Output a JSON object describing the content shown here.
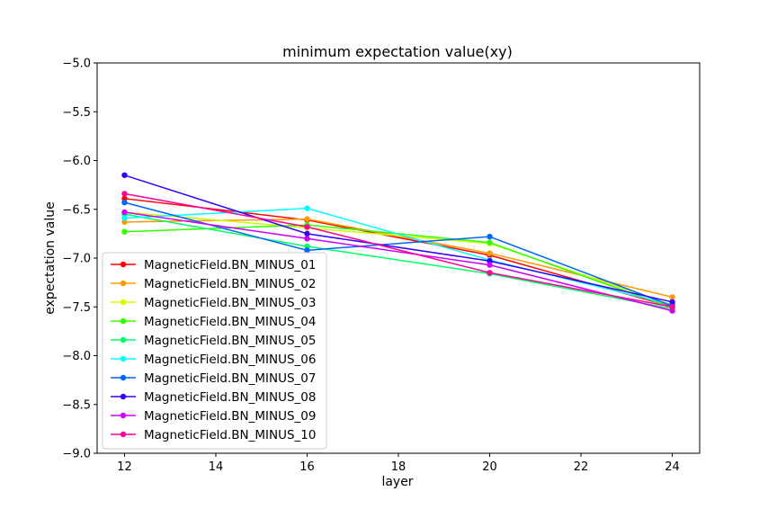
{
  "chart_data": {
    "type": "line",
    "title": "minimum expectation value(xy)",
    "xlabel": "layer",
    "ylabel": "expectation value",
    "x": [
      12,
      16,
      20,
      24
    ],
    "xlim": [
      11.4,
      24.6
    ],
    "ylim": [
      -9.0,
      -5.0
    ],
    "xticks": [
      12,
      14,
      16,
      18,
      20,
      22,
      24
    ],
    "yticks": [
      -9.0,
      -8.5,
      -8.0,
      -7.5,
      -7.0,
      -6.5,
      -6.0,
      -5.5,
      -5.0
    ],
    "xtick_labels": [
      "12",
      "14",
      "16",
      "18",
      "20",
      "22",
      "24"
    ],
    "ytick_labels": [
      "−9.0",
      "−8.5",
      "−8.0",
      "−7.5",
      "−7.0",
      "−6.5",
      "−6.0",
      "−5.5",
      "−5.0"
    ],
    "grid": false,
    "legend_position": "lower-left",
    "series": [
      {
        "name": "MagneticField.BN_MINUS_01",
        "color": "#ff0000",
        "values": [
          -6.39,
          -6.61,
          -6.97,
          -7.5
        ]
      },
      {
        "name": "MagneticField.BN_MINUS_02",
        "color": "#ff9900",
        "values": [
          -6.63,
          -6.6,
          -6.95,
          -7.4
        ]
      },
      {
        "name": "MagneticField.BN_MINUS_03",
        "color": "#ccff00",
        "values": [
          -6.53,
          -6.69,
          -6.85,
          -7.48
        ]
      },
      {
        "name": "MagneticField.BN_MINUS_04",
        "color": "#33ff00",
        "values": [
          -6.73,
          -6.66,
          -6.84,
          -7.51
        ]
      },
      {
        "name": "MagneticField.BN_MINUS_05",
        "color": "#00ff66",
        "values": [
          -6.55,
          -6.88,
          -7.16,
          -7.52
        ]
      },
      {
        "name": "MagneticField.BN_MINUS_06",
        "color": "#00ffff",
        "values": [
          -6.59,
          -6.49,
          -7.02,
          -7.48
        ]
      },
      {
        "name": "MagneticField.BN_MINUS_07",
        "color": "#0066ff",
        "values": [
          -6.43,
          -6.92,
          -6.78,
          -7.49
        ]
      },
      {
        "name": "MagneticField.BN_MINUS_08",
        "color": "#3300ff",
        "values": [
          -6.15,
          -6.75,
          -7.03,
          -7.45
        ]
      },
      {
        "name": "MagneticField.BN_MINUS_09",
        "color": "#cc00ff",
        "values": [
          -6.53,
          -6.8,
          -7.07,
          -7.54
        ]
      },
      {
        "name": "MagneticField.BN_MINUS_10",
        "color": "#ff0099",
        "values": [
          -6.34,
          -6.68,
          -7.15,
          -7.5
        ]
      }
    ]
  }
}
